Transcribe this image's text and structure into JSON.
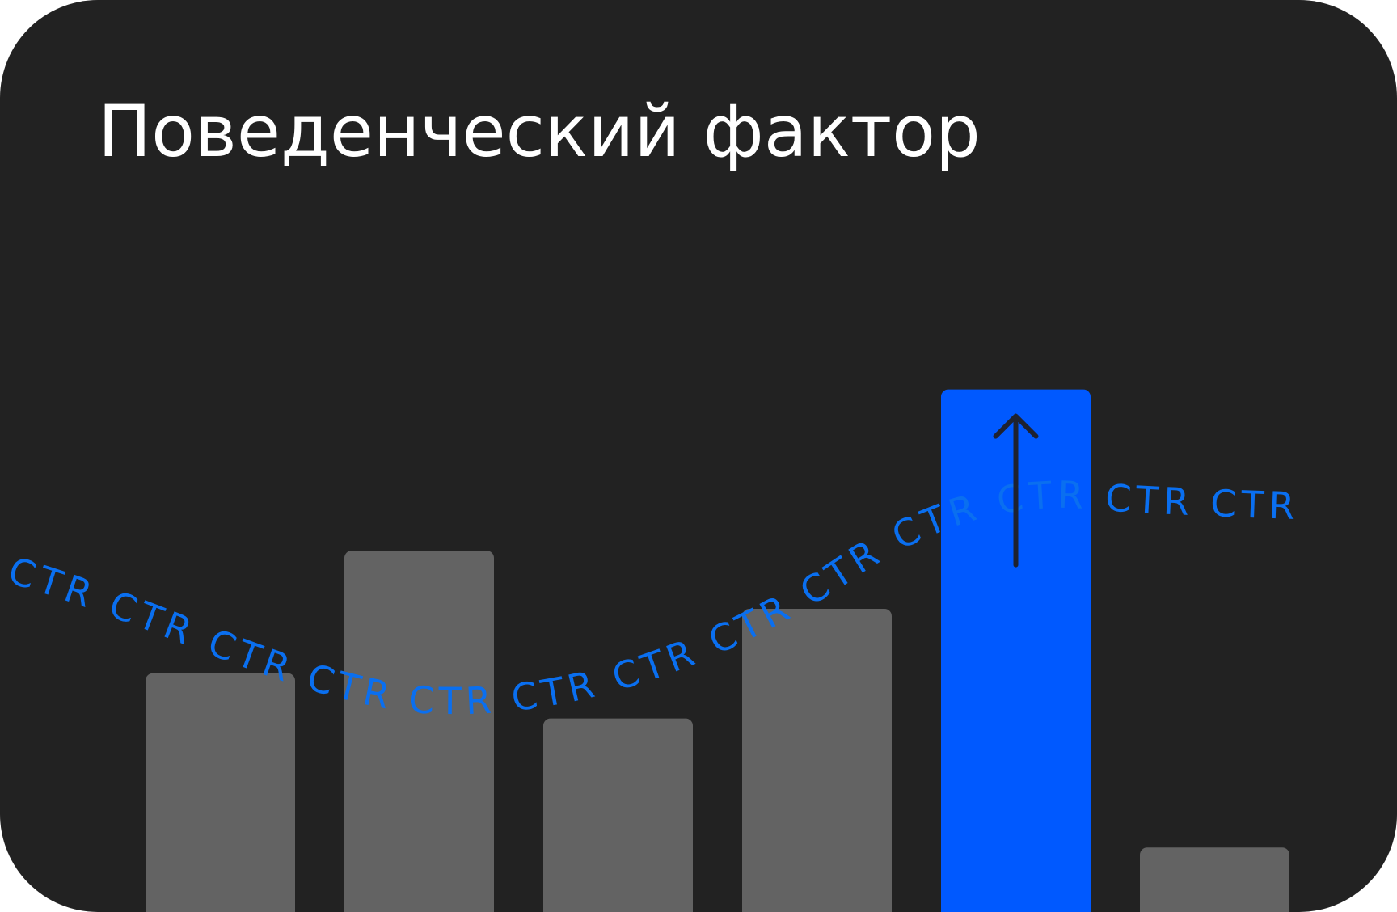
{
  "card": {
    "title": "Поведенческий фактор"
  },
  "illustration": {
    "bars": [
      {
        "level": 0.37,
        "highlighted": false
      },
      {
        "level": 0.56,
        "highlighted": false
      },
      {
        "level": 0.3,
        "highlighted": false
      },
      {
        "level": 0.47,
        "highlighted": false
      },
      {
        "level": 0.81,
        "highlighted": true
      },
      {
        "level": 0.1,
        "highlighted": false
      }
    ],
    "arrow_icon": "arrow-up-icon",
    "curve_label": "CTR",
    "colors": {
      "background": "#222222",
      "bar": "#636363",
      "highlight_bar": "#0059FF",
      "curve_text": "#0A6FF0",
      "title": "#FFFFFF"
    }
  }
}
